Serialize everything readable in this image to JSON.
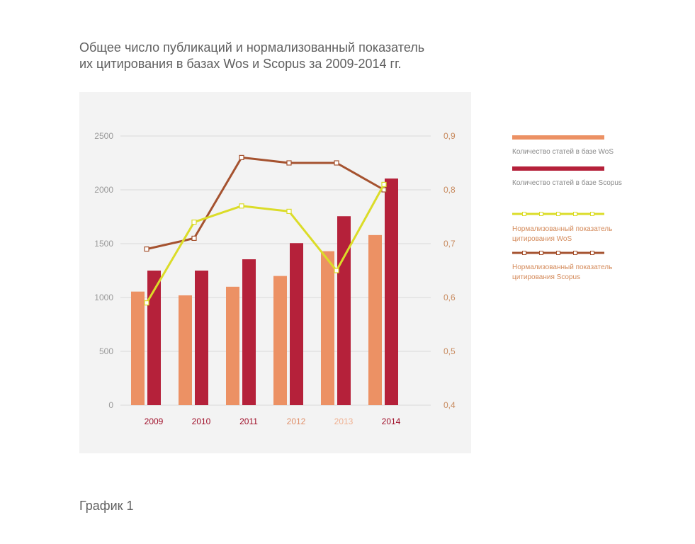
{
  "title_lines": [
    "Общее число публикаций и нормализованный показатель",
    "их цитирования в базах Wos и Scopus за 2009-2014 гг."
  ],
  "caption": "График 1",
  "colors": {
    "wos_bar": "#ec9164",
    "scopus_bar": "#b5213a",
    "wos_line": "#dbdc28",
    "scopus_line": "#a5522f",
    "panel": "#f3f3f3",
    "grid": "#d9d9d9",
    "left_tick": "#9a9a9a",
    "right_tick": "#c88a5e"
  },
  "chart_data": {
    "type": "bar",
    "categories": [
      "2009",
      "2010",
      "2011",
      "2012",
      "2013",
      "2014"
    ],
    "category_label_colors": [
      "#a0102a",
      "#a0102a",
      "#a0102a",
      "#e0906a",
      "#f0b090",
      "#a0102a"
    ],
    "y_left": {
      "min": 0,
      "max": 2500,
      "ticks": [
        "0",
        "500",
        "1000",
        "1500",
        "2000",
        "2500"
      ]
    },
    "y_right": {
      "min": 0.4,
      "max": 0.9,
      "ticks": [
        "0,4",
        "0,5",
        "0,6",
        "0,7",
        "0,8",
        "0,9"
      ]
    },
    "series": [
      {
        "name": "Количество статей в базе WoS",
        "kind": "bar",
        "axis": "left",
        "color": "#ec9164",
        "values": [
          1055,
          1020,
          1100,
          1200,
          1430,
          1580
        ]
      },
      {
        "name": "Количество статей в базе Scopus",
        "kind": "bar",
        "axis": "left",
        "color": "#b5213a",
        "values": [
          1250,
          1250,
          1355,
          1505,
          1755,
          2105
        ]
      },
      {
        "name": "Нормализованный показатель цитирования WoS",
        "kind": "line",
        "axis": "right",
        "color": "#dbdc28",
        "values": [
          0.59,
          0.74,
          0.77,
          0.76,
          0.65,
          0.81
        ]
      },
      {
        "name": "Нормализованный показатель цитирования Scopus",
        "kind": "line",
        "axis": "right",
        "color": "#a5522f",
        "values": [
          0.69,
          0.71,
          0.86,
          0.85,
          0.85,
          0.8
        ]
      }
    ],
    "legend": [
      {
        "lines": [
          "Количество статей в базе WoS"
        ],
        "type": "bar",
        "color": "#ec9164",
        "text_color": "#8a8a8a"
      },
      {
        "lines": [
          "Количество статей в базе Scopus"
        ],
        "type": "bar",
        "color": "#b5213a",
        "text_color": "#8a8a8a"
      },
      {
        "lines": [
          "Нормализованный показатель",
          "цитирования WoS"
        ],
        "type": "line",
        "color": "#dbdc28",
        "text_color": "#d48a5a"
      },
      {
        "lines": [
          "Нормализованный показатель",
          "цитирования Scopus"
        ],
        "type": "line",
        "color": "#a5522f",
        "text_color": "#d48a5a"
      }
    ],
    "legend_position": "right",
    "grid": true
  }
}
